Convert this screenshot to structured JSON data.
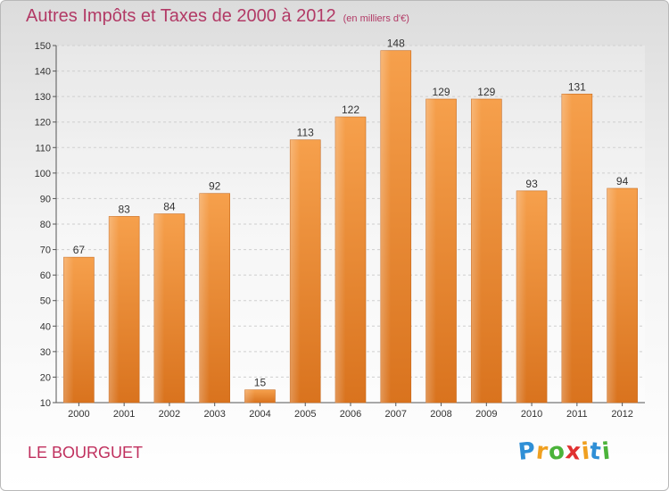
{
  "chart_data": {
    "type": "bar",
    "title": "Autres Impôts et Taxes de 2000 à 2012",
    "subtitle": "(en milliers d'€)",
    "categories": [
      "2000",
      "2001",
      "2002",
      "2003",
      "2004",
      "2005",
      "2006",
      "2007",
      "2008",
      "2009",
      "2010",
      "2011",
      "2012"
    ],
    "values": [
      67,
      83,
      84,
      92,
      15,
      113,
      122,
      148,
      129,
      129,
      93,
      131,
      94
    ],
    "ylim": [
      10,
      150
    ],
    "yticks": [
      10,
      20,
      30,
      40,
      50,
      60,
      70,
      80,
      90,
      100,
      110,
      120,
      130,
      140,
      150
    ],
    "grid": true,
    "bar_color": "#f0913a"
  },
  "place_name": "LE BOURGUET",
  "logo": {
    "letters": [
      "P",
      "r",
      "o",
      "x",
      "i",
      "t",
      "i"
    ],
    "colors": [
      "#2f8fd6",
      "#f0a020",
      "#4bb33a",
      "#e03030",
      "#f0a020",
      "#2f8fd6",
      "#4bb33a"
    ]
  }
}
